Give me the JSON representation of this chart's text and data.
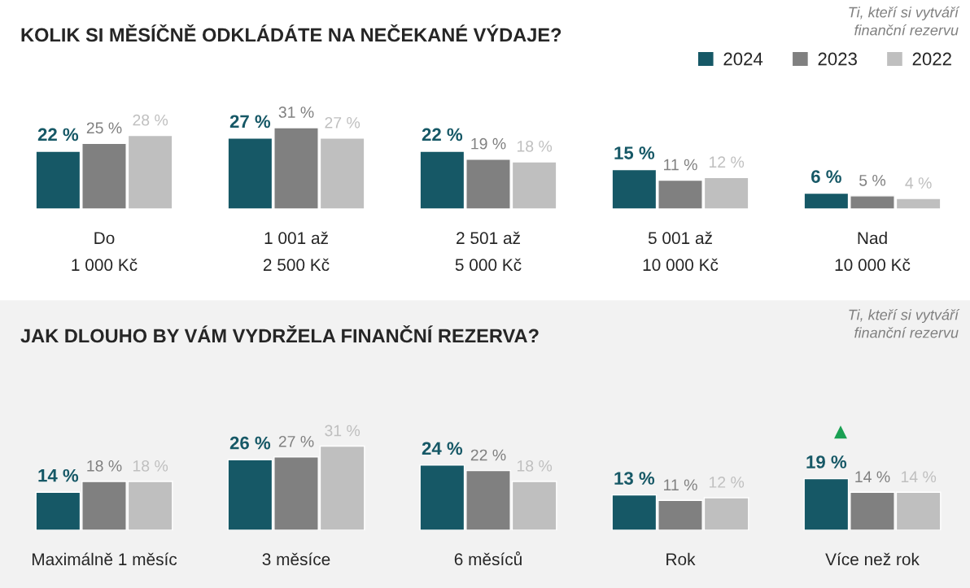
{
  "chart_data": [
    {
      "type": "bar",
      "title": "KOLIK SI MĚSÍČNĚ ODKLÁDÁTE NA NEČEKANÉ VÝDAJE?",
      "subtitle": "Ti, kteří si vytváří\nfinanční rezervu",
      "categories": [
        "Do\n1 000 Kč",
        "1 001 až\n2 500 Kč",
        "2 501 až\n5 000 Kč",
        "5 001 až\n10 000 Kč",
        "Nad\n10 000 Kč"
      ],
      "series": [
        {
          "name": "2024",
          "color": "#165866",
          "values": [
            22,
            27,
            22,
            15,
            6
          ],
          "value_labels": [
            "22 %",
            "27 %",
            "22 %",
            "15 %",
            "6 %"
          ]
        },
        {
          "name": "2023",
          "color": "#808080",
          "values": [
            25,
            31,
            19,
            11,
            5
          ],
          "value_labels": [
            "25 %",
            "31 %",
            "19 %",
            "11 %",
            "5 %"
          ]
        },
        {
          "name": "2022",
          "color": "#bfbfbf",
          "values": [
            28,
            27,
            18,
            12,
            4
          ],
          "value_labels": [
            "28 %",
            "27 %",
            "18 %",
            "12 %",
            "4 %"
          ]
        }
      ],
      "legend": "top right",
      "grid": false
    },
    {
      "type": "bar",
      "title": "JAK DLOUHO BY VÁM VYDRŽELA FINANČNÍ REZERVA?",
      "subtitle": "Ti, kteří si vytváří\nfinanční rezervu",
      "categories": [
        "Maximálně 1 měsíc",
        "3 měsíce",
        "6 měsíců",
        "Rok",
        "Více než rok"
      ],
      "series": [
        {
          "color": "#165866",
          "values": [
            14,
            26,
            24,
            13,
            19
          ],
          "value_labels": [
            "14 %",
            "26 %",
            "24 %",
            "13 %",
            "19 %"
          ]
        },
        {
          "color": "#808080",
          "values": [
            18,
            27,
            22,
            11,
            14
          ],
          "value_labels": [
            "18 %",
            "27 %",
            "22 %",
            "11 %",
            "14 %"
          ]
        },
        {
          "color": "#bfbfbf",
          "values": [
            18,
            31,
            18,
            12,
            14
          ],
          "value_labels": [
            "18 %",
            "31 %",
            "18 %",
            "12 %",
            "14 %"
          ]
        }
      ],
      "annotations": [
        "▲"
      ],
      "grid": false
    }
  ]
}
